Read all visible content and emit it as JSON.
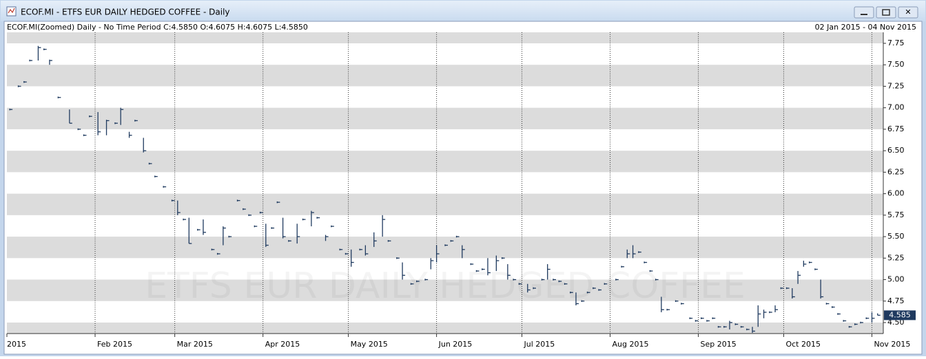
{
  "window": {
    "title": "ECOF.MI - ETFS EUR DAILY HEDGED COFFEE - Daily",
    "info": "ECOF.MI(Zoomed) Daily -  No Time Period   C:4.5850 O:4.6075 H:4.6075 L:4.5850",
    "date_range": "02 Jan 2015   -   04 Nov 2015"
  },
  "chart_data": {
    "type": "hlc",
    "watermark": "ETFS EUR DAILY HEDGED COFFEE",
    "color": "#1f3a5f",
    "x": [
      2,
      5,
      7,
      9,
      12,
      14,
      16,
      19,
      23,
      26,
      28,
      30,
      33,
      36,
      39,
      41,
      44,
      46,
      49,
      51,
      53,
      56,
      59,
      61,
      63,
      65,
      68,
      70,
      73,
      75,
      77,
      79,
      82,
      84,
      86,
      88,
      90,
      92,
      94,
      96,
      98,
      100,
      103,
      105,
      108,
      110,
      113,
      115,
      118,
      120,
      122,
      125,
      127,
      130,
      133,
      135,
      138,
      140,
      143,
      145,
      148,
      150,
      152,
      155,
      157,
      159,
      161,
      164,
      166,
      168,
      170,
      173,
      175,
      177,
      179,
      181,
      184,
      186,
      189,
      191,
      193,
      195,
      197,
      199,
      201,
      203,
      205,
      207,
      209,
      211,
      215,
      217,
      219,
      221,
      223,
      225,
      227,
      229,
      231,
      233,
      236,
      238,
      241,
      243,
      245,
      247,
      249,
      251,
      253,
      255,
      257,
      259,
      261,
      263,
      265,
      267,
      269,
      271,
      273,
      275,
      277,
      279,
      281,
      283,
      285,
      287,
      289,
      291,
      293,
      295,
      297,
      299,
      301,
      303,
      305,
      307
    ],
    "high": [
      6.99,
      7.26,
      7.31,
      7.56,
      7.72,
      7.69,
      7.56,
      7.13,
      6.98,
      6.76,
      6.69,
      6.91,
      6.95,
      6.86,
      6.83,
      7.0,
      6.72,
      6.86,
      6.65,
      6.36,
      6.21,
      6.09,
      5.93,
      5.92,
      5.71,
      5.72,
      5.59,
      5.7,
      5.36,
      5.31,
      5.62,
      5.51,
      5.93,
      5.83,
      5.76,
      5.63,
      5.79,
      5.65,
      5.61,
      5.91,
      5.72,
      5.46,
      5.65,
      5.71,
      5.8,
      5.73,
      5.52,
      5.63,
      5.36,
      5.31,
      5.35,
      5.36,
      5.4,
      5.55,
      5.75,
      5.46,
      5.26,
      5.2,
      4.96,
      4.99,
      5.01,
      5.25,
      5.4,
      5.41,
      5.46,
      5.51,
      5.4,
      5.19,
      5.11,
      5.13,
      5.25,
      5.28,
      5.26,
      5.18,
      5.01,
      4.96,
      4.95,
      4.91,
      5.01,
      5.18,
      5.01,
      4.99,
      4.96,
      4.86,
      4.85,
      4.76,
      4.86,
      4.91,
      4.89,
      4.96,
      5.01,
      5.16,
      5.35,
      5.4,
      5.33,
      5.21,
      5.11,
      5.01,
      4.8,
      4.66,
      4.76,
      4.73,
      4.56,
      4.53,
      4.56,
      4.53,
      4.56,
      4.46,
      4.46,
      4.52,
      4.49,
      4.46,
      4.43,
      4.45,
      4.7,
      4.65,
      4.63,
      4.7,
      4.91,
      4.91,
      4.9,
      5.1,
      5.22,
      5.21,
      5.13,
      5.0,
      4.73,
      4.69,
      4.61,
      4.53,
      4.46,
      4.49,
      4.51,
      4.56,
      4.62,
      4.6075
    ],
    "low": [
      6.97,
      7.24,
      7.29,
      7.54,
      7.55,
      7.67,
      7.5,
      7.11,
      6.82,
      6.74,
      6.67,
      6.89,
      6.68,
      6.68,
      6.81,
      6.8,
      6.65,
      6.84,
      6.48,
      6.34,
      6.19,
      6.07,
      5.91,
      5.75,
      5.69,
      5.42,
      5.57,
      5.52,
      5.34,
      5.29,
      5.4,
      5.49,
      5.91,
      5.81,
      5.74,
      5.61,
      5.77,
      5.38,
      5.59,
      5.89,
      5.48,
      5.44,
      5.42,
      5.69,
      5.62,
      5.71,
      5.45,
      5.61,
      5.34,
      5.29,
      5.15,
      5.34,
      5.28,
      5.38,
      5.5,
      5.44,
      5.24,
      5.0,
      4.94,
      4.97,
      4.99,
      5.12,
      5.2,
      5.39,
      5.44,
      5.49,
      5.25,
      5.17,
      5.09,
      5.11,
      5.05,
      5.1,
      5.24,
      5.0,
      4.99,
      4.94,
      4.85,
      4.89,
      4.99,
      5.0,
      4.99,
      4.97,
      4.94,
      4.84,
      4.7,
      4.74,
      4.84,
      4.89,
      4.87,
      4.94,
      4.99,
      5.14,
      5.25,
      5.25,
      5.31,
      5.19,
      5.09,
      4.99,
      4.62,
      4.64,
      4.74,
      4.71,
      4.54,
      4.51,
      4.54,
      4.51,
      4.54,
      4.44,
      4.44,
      4.42,
      4.47,
      4.44,
      4.41,
      4.38,
      4.45,
      4.55,
      4.61,
      4.62,
      4.89,
      4.89,
      4.78,
      4.95,
      5.15,
      5.19,
      5.11,
      4.78,
      4.71,
      4.67,
      4.59,
      4.51,
      4.44,
      4.47,
      4.49,
      4.54,
      4.5,
      4.585
    ],
    "close": [
      6.98,
      7.25,
      7.3,
      7.55,
      7.7,
      7.68,
      7.55,
      7.12,
      6.82,
      6.75,
      6.68,
      6.9,
      6.72,
      6.85,
      6.82,
      6.98,
      6.68,
      6.85,
      6.5,
      6.35,
      6.2,
      6.08,
      5.92,
      5.78,
      5.7,
      5.42,
      5.58,
      5.55,
      5.35,
      5.3,
      5.6,
      5.5,
      5.92,
      5.82,
      5.75,
      5.62,
      5.78,
      5.4,
      5.6,
      5.9,
      5.5,
      5.45,
      5.5,
      5.7,
      5.78,
      5.72,
      5.5,
      5.62,
      5.35,
      5.3,
      5.2,
      5.35,
      5.3,
      5.45,
      5.7,
      5.45,
      5.25,
      5.05,
      4.95,
      4.98,
      5.0,
      5.22,
      5.3,
      5.4,
      5.45,
      5.5,
      5.35,
      5.18,
      5.1,
      5.12,
      5.08,
      5.22,
      5.25,
      5.05,
      5.0,
      4.95,
      4.88,
      4.9,
      5.0,
      5.12,
      5.0,
      4.98,
      4.95,
      4.85,
      4.72,
      4.75,
      4.85,
      4.9,
      4.88,
      4.95,
      5.0,
      5.15,
      5.3,
      5.3,
      5.32,
      5.2,
      5.1,
      5.0,
      4.65,
      4.65,
      4.75,
      4.72,
      4.55,
      4.52,
      4.55,
      4.52,
      4.55,
      4.45,
      4.45,
      4.5,
      4.48,
      4.45,
      4.42,
      4.4,
      4.6,
      4.62,
      4.62,
      4.65,
      4.9,
      4.9,
      4.8,
      5.05,
      5.18,
      5.2,
      5.12,
      4.8,
      4.72,
      4.68,
      4.6,
      4.52,
      4.45,
      4.48,
      4.5,
      4.55,
      4.55,
      4.585
    ],
    "last_price": 4.585,
    "xlim": [
      1,
      309
    ],
    "xticks": [
      {
        "value": 1,
        "label": "2015"
      },
      {
        "value": 32,
        "label": "Feb 2015"
      },
      {
        "value": 60,
        "label": "Mar 2015"
      },
      {
        "value": 91,
        "label": "Apr 2015"
      },
      {
        "value": 121,
        "label": "May 2015"
      },
      {
        "value": 152,
        "label": "Jun 2015"
      },
      {
        "value": 182,
        "label": "Jul 2015"
      },
      {
        "value": 213,
        "label": "Aug 2015"
      },
      {
        "value": 244,
        "label": "Sep 2015"
      },
      {
        "value": 274,
        "label": "Oct 2015"
      },
      {
        "value": 305,
        "label": "Nov 2015"
      }
    ],
    "ylim": [
      4.372,
      7.878
    ],
    "yticks": [
      {
        "value": 4.5,
        "label": "4.50"
      },
      {
        "value": 4.75,
        "label": "4.75"
      },
      {
        "value": 5,
        "label": "5.00"
      },
      {
        "value": 5.25,
        "label": "5.25"
      },
      {
        "value": 5.5,
        "label": "5.50"
      },
      {
        "value": 5.75,
        "label": "5.75"
      },
      {
        "value": 6,
        "label": "6.00"
      },
      {
        "value": 6.25,
        "label": "6.25"
      },
      {
        "value": 6.5,
        "label": "6.50"
      },
      {
        "value": 6.75,
        "label": "6.75"
      },
      {
        "value": 7,
        "label": "7.00"
      },
      {
        "value": 7.25,
        "label": "7.25"
      },
      {
        "value": 7.5,
        "label": "7.50"
      },
      {
        "value": 7.75,
        "label": "7.75"
      }
    ]
  }
}
